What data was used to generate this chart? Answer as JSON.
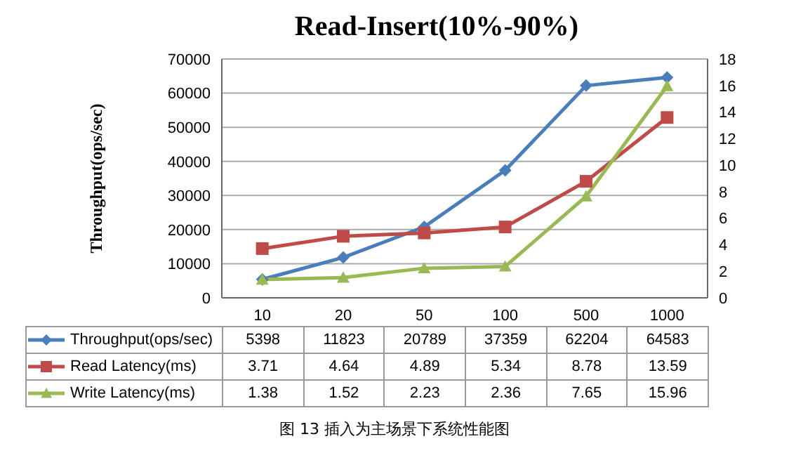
{
  "chart_data": {
    "type": "line",
    "title": "Read-Insert(10%-90%)",
    "ylabel": "Throughput(ops/sec)",
    "categories": [
      "10",
      "20",
      "50",
      "100",
      "500",
      "1000"
    ],
    "series": [
      {
        "name": "Throughput(ops/sec)",
        "color": "#4a7ebb",
        "marker": "diamond",
        "values": [
          5398,
          11823,
          20789,
          37359,
          62204,
          64583
        ]
      },
      {
        "name": "Read Latency(ms)",
        "color": "#be4b48",
        "marker": "square",
        "axis": "y2",
        "values": [
          3.71,
          4.64,
          4.89,
          5.34,
          8.78,
          13.59
        ]
      },
      {
        "name": "Write Latency(ms)",
        "color": "#98b954",
        "marker": "triangle",
        "axis": "y2",
        "values": [
          1.38,
          1.52,
          2.23,
          2.36,
          7.65,
          15.96
        ]
      }
    ],
    "ylim": [
      0,
      70000
    ],
    "yticks": [
      0,
      10000,
      20000,
      30000,
      40000,
      50000,
      60000,
      70000
    ],
    "y2lim": [
      0,
      18
    ],
    "y2ticks": [
      0,
      2,
      4,
      6,
      8,
      10,
      12,
      14,
      16,
      18
    ],
    "grid": "y",
    "legend": "bottom",
    "data_labels": true,
    "annotations": [
      "图 13 插入为主场景下系统性能图"
    ]
  }
}
